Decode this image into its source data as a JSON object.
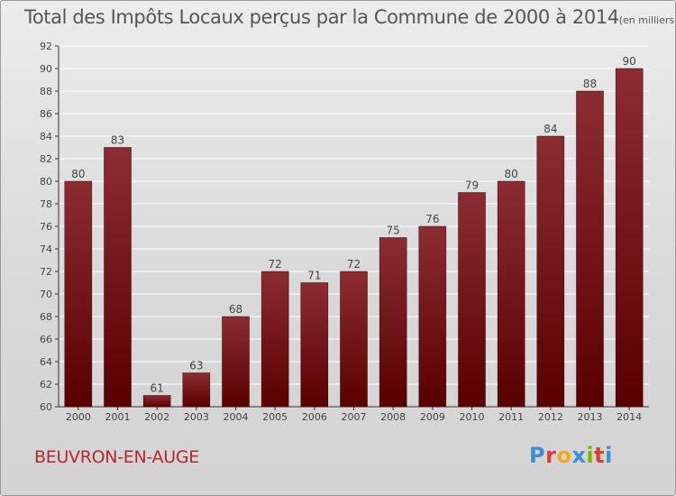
{
  "title": "Total des Impôts Locaux perçus par la Commune de 2000 à 2014",
  "unit": "(en milliers d'€)",
  "commune": "BEUVRON-EN-AUGE",
  "logo": {
    "letters": [
      "P",
      "r",
      "o",
      "x",
      "i",
      "t",
      "i"
    ],
    "colors": [
      "#3b8fd4",
      "#e23a2c",
      "#f5a623",
      "#3b8fd4",
      "#7ab800",
      "#e23a2c",
      "#3b8fd4"
    ]
  },
  "colors": {
    "bar_top": "#8b2c33",
    "bar_bottom": "#5a0000",
    "grid": "#ffffff",
    "axis": "#333333"
  },
  "chart_data": {
    "type": "bar",
    "title": "Total des Impôts Locaux perçus par la Commune de 2000 à 2014",
    "xlabel": "",
    "ylabel": "en milliers d'€",
    "categories": [
      "2000",
      "2001",
      "2002",
      "2003",
      "2004",
      "2005",
      "2006",
      "2007",
      "2008",
      "2009",
      "2010",
      "2011",
      "2012",
      "2013",
      "2014"
    ],
    "values": [
      80,
      83,
      61,
      63,
      68,
      72,
      71,
      72,
      75,
      76,
      79,
      80,
      84,
      88,
      90
    ],
    "ylim": [
      60,
      92
    ],
    "yticks": [
      60,
      62,
      64,
      66,
      68,
      70,
      72,
      74,
      76,
      78,
      80,
      82,
      84,
      86,
      88,
      90,
      92
    ],
    "grid": true
  }
}
